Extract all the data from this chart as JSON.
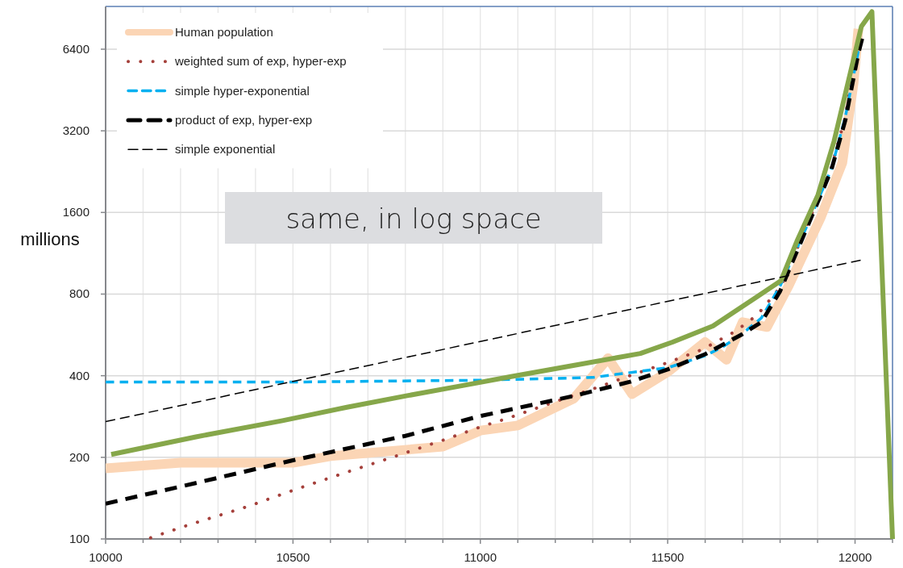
{
  "chart_data": {
    "type": "line",
    "ylabel": "millions",
    "log": "y",
    "grid": true,
    "legend": "top left",
    "annotations": [
      "same, in log space"
    ],
    "xlim": [
      10000,
      12100
    ],
    "ylim": [
      100,
      9200
    ],
    "xticks": [
      10000,
      {
        "value": 10100,
        "label": null
      },
      {
        "value": 10200,
        "label": null
      },
      {
        "value": 10300,
        "label": null
      },
      {
        "value": 10400,
        "label": null
      },
      10500,
      {
        "value": 10600,
        "label": null
      },
      {
        "value": 10700,
        "label": null
      },
      {
        "value": 10800,
        "label": null
      },
      {
        "value": 10900,
        "label": null
      },
      11000,
      {
        "value": 11100,
        "label": null
      },
      {
        "value": 11200,
        "label": null
      },
      {
        "value": 11300,
        "label": null
      },
      {
        "value": 11400,
        "label": null
      },
      11500,
      {
        "value": 11600,
        "label": null
      },
      {
        "value": 11700,
        "label": null
      },
      {
        "value": 11800,
        "label": null
      },
      {
        "value": 11900,
        "label": null
      },
      12000,
      {
        "value": 12100,
        "label": null
      }
    ],
    "yticks": [
      100,
      200,
      400,
      800,
      1600,
      3200,
      6400
    ],
    "series": [
      {
        "name": "Human population",
        "color": "#fbd5b5",
        "line_style": "solid",
        "x": [
          10000,
          10200,
          10500,
          10600,
          10900,
          11000,
          11100,
          11250,
          11341,
          11405,
          11500,
          11600,
          11657,
          11700,
          11765,
          11823,
          11909,
          11966,
          11996,
          12009
        ],
        "values": [
          182,
          191,
          191,
          202,
          219,
          251,
          262,
          330,
          464,
          342,
          413,
          532,
          458,
          630,
          605,
          860,
          1540,
          2440,
          4800,
          7600
        ]
      },
      {
        "name": "weighted sum of exp, hyper-exp",
        "color": "#a5403b",
        "line_style": "dotted",
        "x": [
          10120,
          10216,
          10381,
          10511,
          10642,
          10774,
          10907,
          11004,
          11071,
          11200,
          11297,
          11399,
          11496,
          11593,
          11683,
          11739,
          11804,
          11873,
          11937,
          11974,
          12005
        ],
        "values": [
          101,
          112,
          132,
          153,
          176,
          202,
          233,
          260,
          278,
          321,
          356,
          400,
          445,
          500,
          586,
          670,
          860,
          1450,
          2350,
          3600,
          6500
        ]
      },
      {
        "name": "simple hyper-exponential",
        "color": "#00b0f0",
        "line_style": "dashed",
        "x": [
          10000,
          10500,
          11000,
          11300,
          11500,
          11600,
          11650,
          11700,
          11750,
          11800,
          11873,
          11937,
          11974,
          12009
        ],
        "values": [
          379,
          379,
          385,
          394,
          428,
          474,
          514,
          573,
          653,
          857,
          1440,
          2320,
          3600,
          6300
        ]
      },
      {
        "name": "product of exp, hyper-exp",
        "color": "#000000",
        "line_style": "dashed",
        "x": [
          10000,
          10200,
          10500,
          10800,
          11000,
          11250,
          11400,
          11500,
          11600,
          11700,
          11750,
          11800,
          11873,
          11937,
          11974,
          12009,
          12019
        ],
        "values": [
          135,
          156,
          195,
          240,
          284,
          337,
          380,
          422,
          480,
          570,
          630,
          820,
          1420,
          2300,
          3500,
          6200,
          7000
        ]
      },
      {
        "color": "#86a74a",
        "line_style": "solid",
        "x": [
          10015,
          10241,
          10472,
          10644,
          10802,
          10953,
          11082,
          11248,
          11427,
          11513,
          11621,
          11737,
          11802,
          11845,
          11901,
          11944,
          12017,
          12045,
          12100
        ],
        "values": [
          205,
          238,
          273,
          306,
          337,
          368,
          397,
          436,
          483,
          532,
          610,
          780,
          895,
          1255,
          1855,
          2930,
          7770,
          8800,
          100
        ]
      },
      {
        "name": "simple exponential",
        "color": "#000000",
        "line_style": "dashed",
        "x": [
          10000,
          10250,
          10500,
          10750,
          11000,
          11250,
          11500,
          11750,
          12015
        ],
        "values": [
          271,
          321,
          381,
          451,
          535,
          634,
          752,
          891,
          1067
        ]
      }
    ]
  }
}
